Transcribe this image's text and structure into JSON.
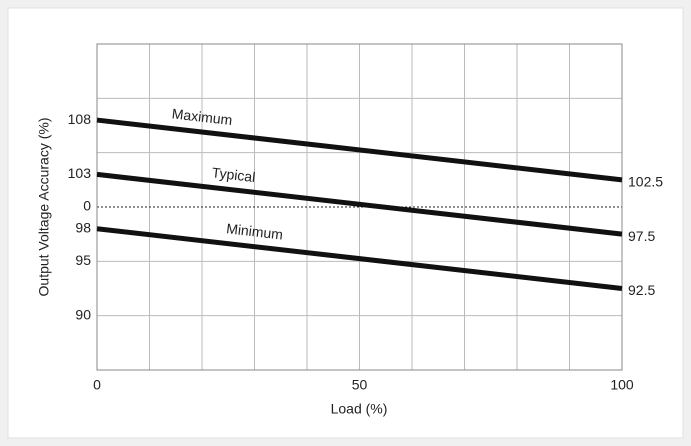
{
  "chart_data": {
    "type": "line",
    "xlabel": "Load (%)",
    "ylabel": "Output Voltage Accuracy (%)",
    "x": [
      0,
      100
    ],
    "series": [
      {
        "name": "Maximum",
        "color": "#111111",
        "values": [
          108,
          102.5
        ],
        "value_labels": [
          null,
          "102.5"
        ]
      },
      {
        "name": "Typical",
        "color": "#111111",
        "values": [
          103,
          97.5
        ],
        "value_labels": [
          null,
          "97.5"
        ]
      },
      {
        "name": "Minimum",
        "color": "#111111",
        "values": [
          98,
          92.5
        ],
        "value_labels": [
          null,
          "92.5"
        ]
      }
    ],
    "xlim": [
      0,
      100
    ],
    "xticks": [
      0,
      50,
      100
    ],
    "ylim": [
      85,
      115
    ],
    "yticks": [
      108,
      103,
      {
        "value": 100,
        "label": "0"
      },
      98,
      95,
      90
    ],
    "xgrid": [
      0,
      10,
      20,
      30,
      40,
      50,
      60,
      70,
      80,
      90,
      100
    ],
    "ygrid": [
      85,
      90,
      95,
      105,
      110,
      115
    ],
    "reference_line": 100,
    "grid": true
  }
}
